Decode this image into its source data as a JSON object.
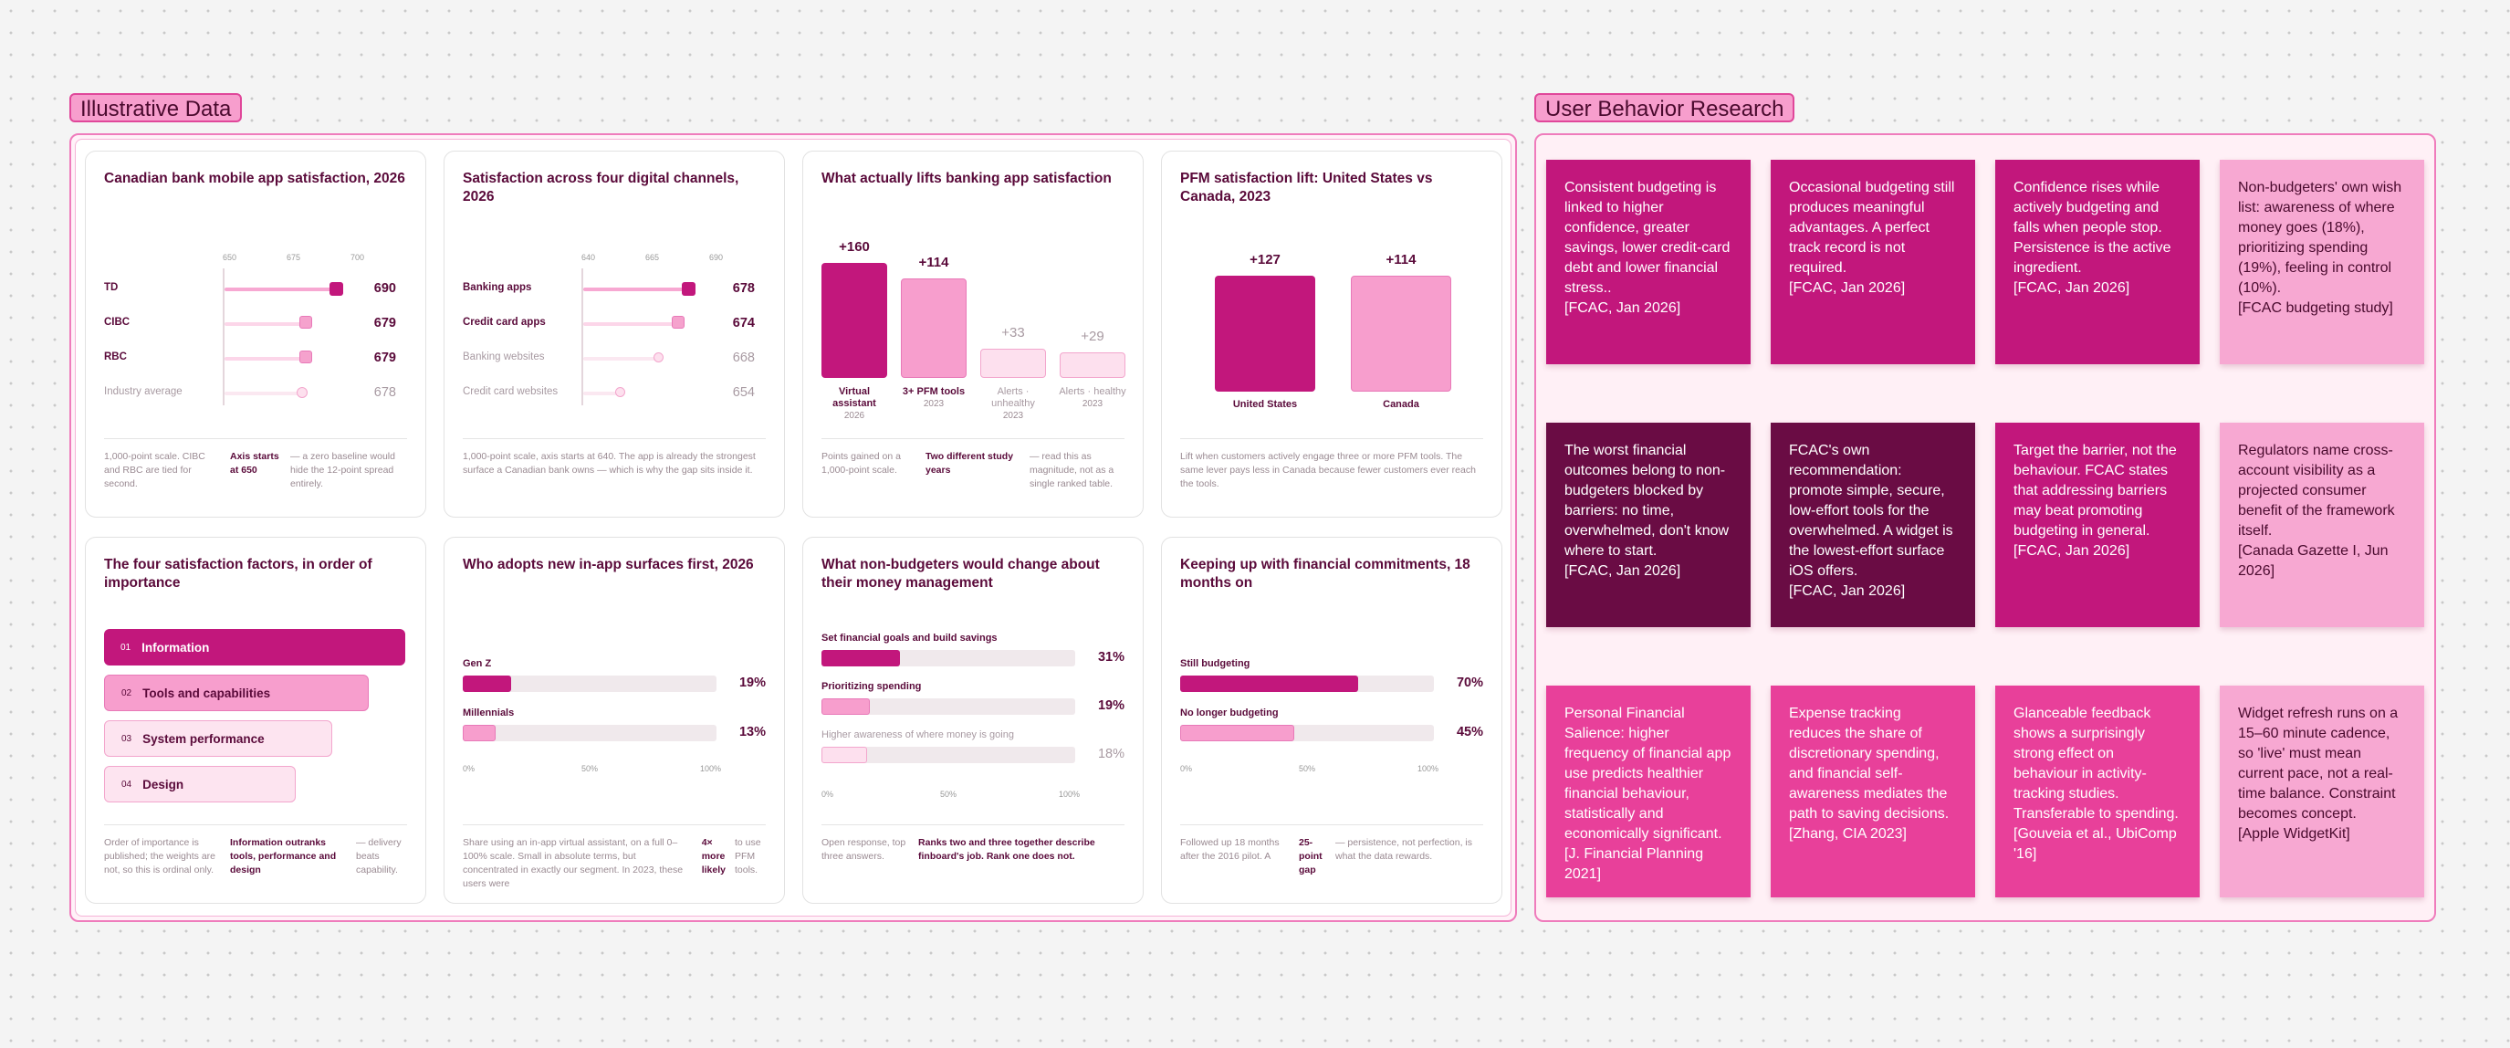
{
  "colors": {
    "primary": "#c2177c",
    "mid": "#f79ecd",
    "light": "#fde0ee",
    "dark": "#6a0c44",
    "hot": "#e8409a",
    "pale": "#f7a8d2"
  },
  "sections": {
    "illustrative": "Illustrative Data",
    "research": "User Behavior Research"
  },
  "cards": {
    "c1": {
      "title": "Canadian bank mobile app satisfaction, 2026",
      "rows": [
        {
          "label": "TD",
          "value": "690"
        },
        {
          "label": "CIBC",
          "value": "679"
        },
        {
          "label": "RBC",
          "value": "679"
        },
        {
          "label": "Industry average",
          "value": "678"
        }
      ],
      "foot": [
        "1,000-point scale. CIBC and RBC are tied for second.",
        "Axis starts at 650",
        "— a zero baseline would hide the 12-point spread entirely."
      ]
    },
    "c2": {
      "title": "Satisfaction across four digital channels, 2026",
      "rows": [
        {
          "label": "Banking apps",
          "value": "678"
        },
        {
          "label": "Credit card apps",
          "value": "674"
        },
        {
          "label": "Banking websites",
          "value": "668"
        },
        {
          "label": "Credit card websites",
          "value": "654"
        }
      ],
      "foot": [
        "1,000-point scale, axis starts at 640. The app is already the strongest surface a Canadian bank owns — which is why the gap sits inside it."
      ]
    },
    "c3": {
      "title": "What actually lifts banking app satisfaction",
      "bars": [
        {
          "value": "+160",
          "label": "Virtual assistant",
          "sub": "2026"
        },
        {
          "value": "+114",
          "label": "3+ PFM tools",
          "sub": "2023"
        },
        {
          "value": "+33",
          "label": "Alerts · unhealthy",
          "sub": "2023"
        },
        {
          "value": "+29",
          "label": "Alerts · healthy",
          "sub": "2023"
        }
      ],
      "foot": [
        "Points gained on a 1,000-point scale.",
        "Two different study years",
        "— read this as magnitude, not as a single ranked table."
      ]
    },
    "c4": {
      "title": "PFM satisfaction lift: United States vs Canada, 2023",
      "bars": [
        {
          "value": "+127",
          "label": "United States"
        },
        {
          "value": "+114",
          "label": "Canada"
        }
      ],
      "foot": [
        "Lift when customers actively engage three or more PFM tools. The same lever pays less in Canada because fewer customers ever reach the tools."
      ]
    },
    "c5": {
      "title": "The four satisfaction factors, in order of importance",
      "factors": [
        {
          "num": "01",
          "label": "Information"
        },
        {
          "num": "02",
          "label": "Tools and capabilities"
        },
        {
          "num": "03",
          "label": "System performance"
        },
        {
          "num": "04",
          "label": "Design"
        }
      ],
      "foot": [
        "Order of importance is published; the weights are not, so this is ordinal only.",
        "Information outranks tools, performance and design",
        "— delivery beats capability."
      ]
    },
    "c6": {
      "title": "Who adopts new in-app surfaces first, 2026",
      "rows": [
        {
          "label": "Gen Z",
          "value": "19%"
        },
        {
          "label": "Millennials",
          "value": "13%"
        }
      ],
      "foot": [
        "Share using an in-app virtual assistant, on a full 0–100% scale. Small in absolute terms, but concentrated in exactly our segment. In 2023, these users were",
        "4× more likely",
        "to use PFM tools."
      ]
    },
    "c7": {
      "title": "What non-budgeters would change about their money management",
      "rows": [
        {
          "label": "Set financial goals and build savings",
          "value": "31%"
        },
        {
          "label": "Prioritizing spending",
          "value": "19%"
        },
        {
          "label": "Higher awareness of where money is going",
          "value": "18%"
        }
      ],
      "foot": [
        "Open response, top three answers.",
        "Ranks two and three together describe finboard's job. Rank one does not."
      ]
    },
    "c8": {
      "title": "Keeping up with financial commitments, 18 months on",
      "rows": [
        {
          "label": "Still budgeting",
          "value": "70%"
        },
        {
          "label": "No longer budgeting",
          "value": "45%"
        }
      ],
      "foot": [
        "Followed up 18 months after the 2016 pilot. A",
        "25-point gap",
        "— persistence, not perfection, is what the data rewards."
      ]
    }
  },
  "axes": {
    "c1": [
      "650",
      "675",
      "700"
    ],
    "c2": [
      "640",
      "665",
      "690"
    ],
    "pct": [
      "0%",
      "50%",
      "100%"
    ]
  },
  "chart_data": [
    {
      "type": "bar",
      "title": "Canadian bank mobile app satisfaction, 2026",
      "categories": [
        "TD",
        "CIBC",
        "RBC",
        "Industry average"
      ],
      "values": [
        690,
        679,
        679,
        678
      ],
      "xlim": [
        650,
        700
      ]
    },
    {
      "type": "bar",
      "title": "Satisfaction across four digital channels, 2026",
      "categories": [
        "Banking apps",
        "Credit card apps",
        "Banking websites",
        "Credit card websites"
      ],
      "values": [
        678,
        674,
        668,
        654
      ],
      "xlim": [
        640,
        690
      ]
    },
    {
      "type": "bar",
      "title": "What actually lifts banking app satisfaction",
      "categories": [
        "Virtual assistant",
        "3+ PFM tools",
        "Alerts · unhealthy",
        "Alerts · healthy"
      ],
      "values": [
        160,
        114,
        33,
        29
      ]
    },
    {
      "type": "bar",
      "title": "PFM satisfaction lift: United States vs Canada, 2023",
      "categories": [
        "United States",
        "Canada"
      ],
      "values": [
        127,
        114
      ]
    },
    {
      "type": "bar",
      "title": "Who adopts new in-app surfaces first, 2026",
      "categories": [
        "Gen Z",
        "Millennials"
      ],
      "values": [
        19,
        13
      ],
      "xlim": [
        0,
        100
      ]
    },
    {
      "type": "bar",
      "title": "What non-budgeters would change about their money management",
      "categories": [
        "Set financial goals and build savings",
        "Prioritizing spending",
        "Higher awareness of where money is going"
      ],
      "values": [
        31,
        19,
        18
      ],
      "xlim": [
        0,
        100
      ]
    },
    {
      "type": "bar",
      "title": "Keeping up with financial commitments, 18 months on",
      "categories": [
        "Still budgeting",
        "No longer budgeting"
      ],
      "values": [
        70,
        45
      ],
      "xlim": [
        0,
        100
      ]
    }
  ],
  "notes": [
    {
      "text": "Consistent budgeting is linked to higher confidence, greater savings, lower credit-card debt and lower financial stress..",
      "cite": "[FCAC, Jan 2026]",
      "style": "primary"
    },
    {
      "text": "Occasional budgeting still produces meaningful advantages. A perfect track record is not required.",
      "cite": "[FCAC, Jan 2026]",
      "style": "primary"
    },
    {
      "text": "Confidence rises while actively budgeting and falls when people stop. Persistence is the active ingredient.",
      "cite": "[FCAC, Jan 2026]",
      "style": "primary"
    },
    {
      "text": "Non-budgeters' own wish list: awareness of where money goes (18%), prioritizing spending (19%), feeling in control (10%).",
      "cite": "[FCAC budgeting study]",
      "style": "pale"
    },
    {
      "text": "The worst financial outcomes belong to non-budgeters blocked by barriers: no time, overwhelmed, don't know where to start.",
      "cite": "[FCAC, Jan 2026]",
      "style": "dark"
    },
    {
      "text": "FCAC's own recommendation: promote simple, secure, low-effort tools for the overwhelmed. A widget is the lowest-effort surface iOS offers.",
      "cite": "[FCAC, Jan 2026]",
      "style": "dark"
    },
    {
      "text": "Target the barrier, not the behaviour. FCAC states that addressing barriers may beat promoting budgeting in general.",
      "cite": "[FCAC, Jan 2026]",
      "style": "primary"
    },
    {
      "text": "Regulators name cross-account visibility as a projected consumer benefit of the framework itself.",
      "cite": "[Canada Gazette I, Jun 2026]",
      "style": "pale"
    },
    {
      "text": "Personal Financial Salience: higher frequency of financial app use predicts healthier financial behaviour, statistically and economically significant.",
      "cite": "[J. Financial Planning 2021]",
      "style": "hot"
    },
    {
      "text": "Expense tracking reduces the share of discretionary spending, and financial self-awareness mediates the path to saving decisions.",
      "cite": "[Zhang, CIA 2023]",
      "style": "hot"
    },
    {
      "text": "Glanceable feedback shows a surprisingly strong effect on behaviour in activity-tracking studies. Transferable to spending.",
      "cite": "[Gouveia et al., UbiComp '16]",
      "style": "hot"
    },
    {
      "text": "Widget refresh runs on a 15–60 minute cadence, so 'live' must mean current pace, not a real-time balance. Constraint becomes concept.",
      "cite": "[Apple WidgetKit]",
      "style": "pale"
    }
  ]
}
